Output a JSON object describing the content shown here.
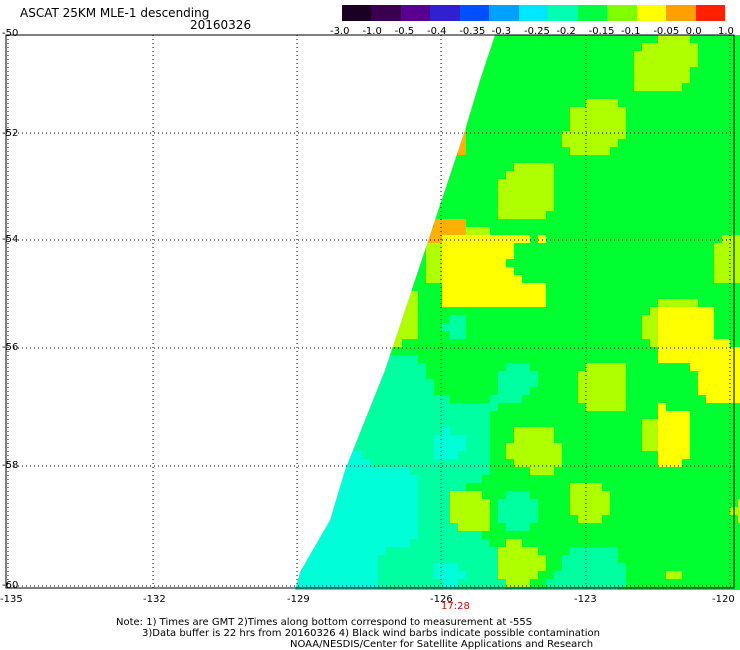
{
  "header": {
    "title": "ASCAT 25KM MLE-1 descending",
    "date": "20160326"
  },
  "colorbar": {
    "labels": [
      "-3.0",
      "-1.0",
      "-0.5",
      "-0.4",
      "-0.35",
      "-0.3",
      "-0.25",
      "-0.2",
      "-0.15",
      "-0.1",
      "-0.05",
      "0.0",
      "1.0"
    ],
    "colors": [
      "#1a0022",
      "#3a0050",
      "#5a0090",
      "#3020d0",
      "#0050ff",
      "#00a0ff",
      "#00e8ff",
      "#00ffb0",
      "#00ff40",
      "#80ff00",
      "#ffff00",
      "#ffa000",
      "#ff2000"
    ]
  },
  "axes": {
    "lat_labels": [
      "-50",
      "-52",
      "-54",
      "-56",
      "-58",
      "-60"
    ],
    "lon_labels": [
      "-135",
      "-132",
      "-129",
      "-126",
      "-123",
      "-120"
    ]
  },
  "swath": {
    "time_label": "17:28"
  },
  "notes": {
    "line1": "Note: 1) Times are GMT 2)Times along bottom correspond to measurement at -55S",
    "line2": "3)Data buffer is 22 hrs from 20160326 4) Black wind barbs indicate possible contamination",
    "line3": "NOAA/NESDIS/Center for Satellite Applications and Research"
  },
  "palette": {
    "cyan": "#00ffd8",
    "mint": "#00ffa0",
    "green": "#00ff30",
    "yellow_green": "#b0ff00",
    "yellow": "#ffff00",
    "orange": "#ffb000"
  }
}
